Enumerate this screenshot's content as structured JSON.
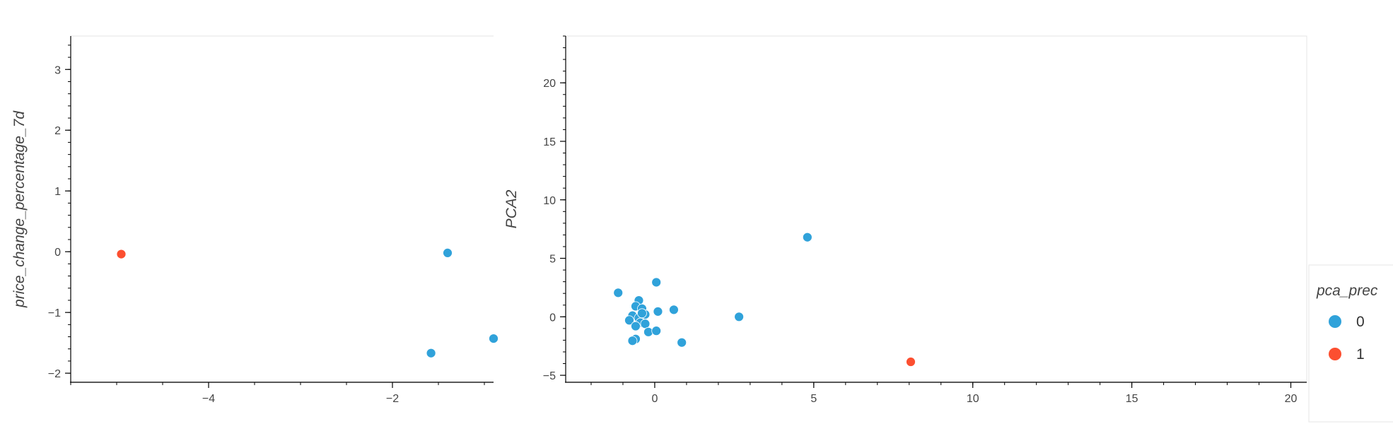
{
  "chart_data": [
    {
      "type": "scatter",
      "xlabel": "",
      "ylabel": "price_change_percentage_7d",
      "xlim": [
        -5.5,
        -0.9
      ],
      "ylim": [
        -2.15,
        3.55
      ],
      "xticks": [
        -4,
        -2
      ],
      "yticks": [
        -2,
        -1,
        0,
        1,
        2,
        3
      ],
      "grid": false,
      "series": [
        {
          "name": "0",
          "color": "#30a2da",
          "x": [
            -1.4,
            -1.58,
            -0.9
          ],
          "y": [
            -0.02,
            -1.67,
            -1.43
          ]
        },
        {
          "name": "1",
          "color": "#fc4f30",
          "x": [
            -4.95
          ],
          "y": [
            -0.04
          ]
        }
      ]
    },
    {
      "type": "scatter",
      "xlabel": "",
      "ylabel": "PCA2",
      "xlim": [
        -2.8,
        20.5
      ],
      "ylim": [
        -5.6,
        24
      ],
      "xticks": [
        0,
        5,
        10,
        15,
        20
      ],
      "yticks": [
        -5,
        0,
        5,
        10,
        15,
        20
      ],
      "grid": false,
      "series": [
        {
          "name": "0",
          "color": "#30a2da",
          "x": [
            -1.15,
            0.05,
            -0.5,
            -0.6,
            -0.4,
            -0.3,
            -0.7,
            -0.8,
            -0.5,
            -0.45,
            -0.3,
            -0.6,
            -0.2,
            0.1,
            0.05,
            0.6,
            2.65,
            4.8,
            0.85,
            -0.6,
            -0.7,
            -0.4
          ],
          "y": [
            2.05,
            2.95,
            1.4,
            0.9,
            0.7,
            0.2,
            0.1,
            -0.3,
            -0.1,
            -0.5,
            -0.6,
            -0.8,
            -1.3,
            0.45,
            -1.2,
            0.6,
            0.0,
            6.8,
            -2.2,
            -1.9,
            -2.05,
            0.3
          ]
        },
        {
          "name": "1",
          "color": "#fc4f30",
          "x": [
            8.05
          ],
          "y": [
            -3.85
          ]
        }
      ]
    }
  ],
  "legend": {
    "title": "pca_prec",
    "items": [
      {
        "label": "0",
        "color": "#30a2da"
      },
      {
        "label": "1",
        "color": "#fc4f30"
      }
    ]
  }
}
